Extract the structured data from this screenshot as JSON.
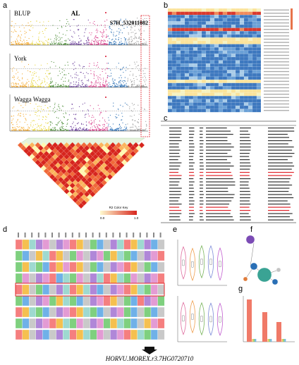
{
  "panel_labels": [
    "a",
    "b",
    "c",
    "d",
    "e",
    "f",
    "g"
  ],
  "panel_a": {
    "plots": [
      "BLUP",
      "York",
      "Wagga Wagga"
    ],
    "trait": "AL",
    "snp": "S7H_532011082",
    "color_key": {
      "title": "R2 Color Key",
      "min": "0.0",
      "max": "1.0"
    }
  },
  "gene": "HORVU.MOREX.r3.7HG0720710"
}
